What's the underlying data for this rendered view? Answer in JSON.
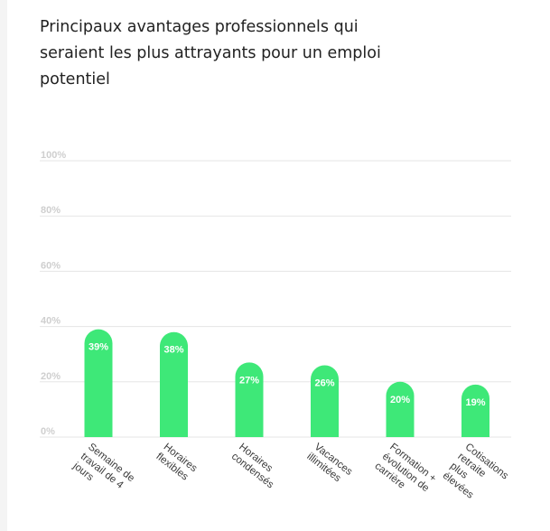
{
  "title": "Principaux avantages professionnels qui seraient les plus attrayants pour un emploi potentiel",
  "colors": {
    "bar": "#3ee878",
    "grid": "#e5e5e5",
    "tick": "#cfcfcf",
    "label": "#3a3a3a",
    "value_label": "#ffffff"
  },
  "chart_data": {
    "type": "bar",
    "categories": [
      "Semaine de travail de 4 jours",
      "Horaires flexibles",
      "Horaires condensés",
      "Vacances illimitées",
      "Formation + évolution de carrière",
      "Cotisations retraite plus élevées"
    ],
    "category_lines": [
      [
        "Semaine de",
        "travail de 4",
        "jours"
      ],
      [
        "Horaires",
        "flexibles"
      ],
      [
        "Horaires",
        "condensés"
      ],
      [
        "Vacances",
        "illimitées"
      ],
      [
        "Formation +",
        "évolution de",
        "carrière"
      ],
      [
        "Cotisations",
        "retraite",
        "plus",
        "élevées"
      ]
    ],
    "values": [
      39,
      38,
      27,
      26,
      20,
      19
    ],
    "value_labels": [
      "39%",
      "38%",
      "27%",
      "26%",
      "20%",
      "19%"
    ],
    "ylim": [
      0,
      100
    ],
    "yticks": [
      0,
      20,
      40,
      60,
      80,
      100
    ],
    "ytick_labels": [
      "0%",
      "20%",
      "40%",
      "60%",
      "80%",
      "100%"
    ],
    "grid": true,
    "legend": "none"
  }
}
